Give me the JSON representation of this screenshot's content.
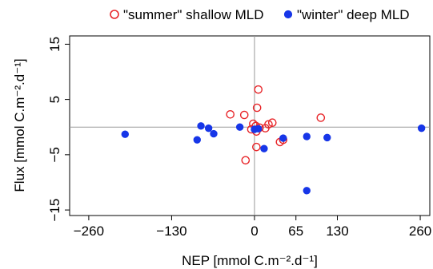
{
  "chart_data": {
    "type": "scatter",
    "xlabel": "NEP [mmol C.m⁻².d⁻¹]",
    "ylabel": "Flux [mmol C.m⁻².d⁻¹]",
    "xlim": [
      -290,
      275
    ],
    "ylim": [
      -16,
      16.5
    ],
    "x_ticks": [
      -260,
      -130,
      0,
      65,
      130,
      260
    ],
    "x_tick_labels": [
      "−260",
      "−130",
      "0",
      "65",
      "130",
      "260"
    ],
    "y_ticks": [
      15,
      5,
      -5,
      -15
    ],
    "y_tick_labels": [
      "15",
      "5",
      "−5",
      "−15"
    ],
    "zero_lines": true,
    "grid": false,
    "legend_position": "top",
    "series": [
      {
        "name": "\"summer\" shallow MLD",
        "marker": "open-circle",
        "color": "#e8262a",
        "points": [
          {
            "x": 6,
            "y": 6.8
          },
          {
            "x": 4,
            "y": 3.5
          },
          {
            "x": -38,
            "y": 2.3
          },
          {
            "x": -16,
            "y": 2.2
          },
          {
            "x": 104,
            "y": 1.7
          },
          {
            "x": 28,
            "y": 0.8
          },
          {
            "x": 22,
            "y": 0.5
          },
          {
            "x": -2,
            "y": 0.6
          },
          {
            "x": 2,
            "y": 0.2
          },
          {
            "x": 8,
            "y": -0.1
          },
          {
            "x": 17,
            "y": -0.2
          },
          {
            "x": -5,
            "y": -0.4
          },
          {
            "x": 3,
            "y": -0.8
          },
          {
            "x": 45,
            "y": -2.3
          },
          {
            "x": 40,
            "y": -2.7
          },
          {
            "x": 3,
            "y": -3.6
          },
          {
            "x": -14,
            "y": -6.0
          }
        ]
      },
      {
        "name": "\"winter\" deep MLD",
        "marker": "filled-circle",
        "color": "#1736e8",
        "points": [
          {
            "x": -203,
            "y": -1.3
          },
          {
            "x": -90,
            "y": -2.3
          },
          {
            "x": -84,
            "y": 0.2
          },
          {
            "x": -72,
            "y": -0.2
          },
          {
            "x": -64,
            "y": -1.2
          },
          {
            "x": -23,
            "y": 0.0
          },
          {
            "x": 0,
            "y": -0.4
          },
          {
            "x": 6,
            "y": -0.3
          },
          {
            "x": 15,
            "y": -3.9
          },
          {
            "x": 45,
            "y": -2.0
          },
          {
            "x": 82,
            "y": -1.7
          },
          {
            "x": 114,
            "y": -1.9
          },
          {
            "x": 262,
            "y": -0.2
          },
          {
            "x": 82,
            "y": -11.5
          }
        ]
      }
    ]
  }
}
